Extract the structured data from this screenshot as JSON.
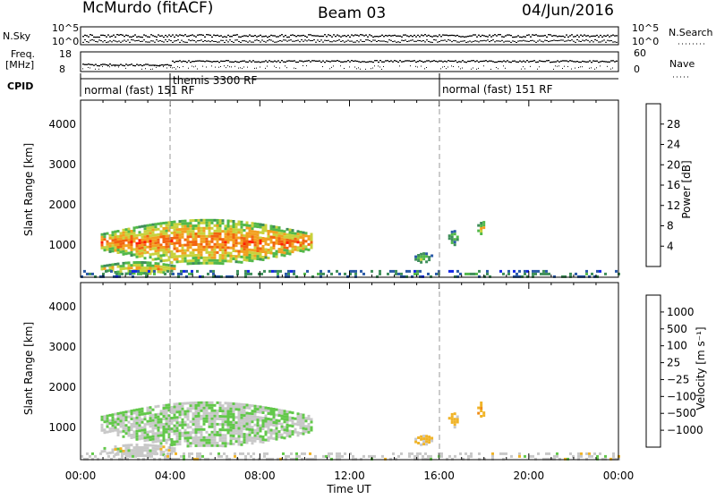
{
  "header": {
    "radar": "McMurdo (fitACF)",
    "beam": "Beam 03",
    "date": "04/Jun/2016"
  },
  "sky_panel": {
    "left_label": "N.Sky",
    "right_label": "N.Search",
    "left_ticks": [
      "10^5",
      "10^0"
    ],
    "right_ticks": [
      "10^5",
      "10^0"
    ]
  },
  "freq_panel": {
    "left_label_line1": "Freq.",
    "left_label_line2": "[MHz]",
    "right_label": "Nave",
    "left_ticks": [
      "18",
      "8"
    ],
    "right_ticks": [
      "60",
      "0"
    ]
  },
  "cpid": {
    "label": "CPID",
    "segments": [
      {
        "text": "normal (fast) 151 RF",
        "start_hour": 0
      },
      {
        "text": "themis 3300 RF",
        "start_hour": 4
      },
      {
        "text": "normal (fast) 151 RF",
        "start_hour": 16
      }
    ]
  },
  "power_panel": {
    "ylabel": "Slant Range [km]",
    "yticks": [
      "1000",
      "2000",
      "3000",
      "4000"
    ],
    "colorbar_label": "Power [dB]",
    "colorbar_ticks": [
      "4",
      "8",
      "12",
      "16",
      "20",
      "24",
      "28"
    ]
  },
  "velocity_panel": {
    "ylabel": "Slant Range [km]",
    "yticks": [
      "1000",
      "2000",
      "3000",
      "4000"
    ],
    "colorbar_label": "Velocity [m s⁻¹]",
    "colorbar_ticks": [
      "1000",
      "500",
      "100",
      "25",
      "−25",
      "−100",
      "−500",
      "−1000"
    ]
  },
  "xaxis": {
    "label": "Time UT",
    "ticks": [
      "00:00",
      "04:00",
      "08:00",
      "12:00",
      "16:00",
      "20:00",
      "00:00"
    ]
  },
  "chart_data": {
    "type": "heatmap",
    "title": "McMurdo (fitACF)   Beam 03   04/Jun/2016",
    "xlabel": "Time UT",
    "ylabel": "Slant Range [km]",
    "xlim_hours": [
      0,
      24
    ],
    "ylim_km": [
      200,
      4600
    ],
    "mode_changes_hours": [
      4,
      16
    ],
    "power_colors": [
      "#1428e6",
      "#2a5aa8",
      "#3f8f5a",
      "#52b84a",
      "#c8d23c",
      "#f2a020",
      "#f26410",
      "#ff1e00"
    ],
    "power_scale_db": [
      0,
      32
    ],
    "velocity_colors": [
      "#2a4eb0",
      "#3c8a5c",
      "#47a06a",
      "#62c84a",
      "#c8c8c8",
      "#f0b428",
      "#f08c14",
      "#f05a0a",
      "#ff1e00"
    ],
    "velocity_scale_ms": [
      -1000,
      1000
    ],
    "echo_regions": [
      {
        "name": "main",
        "t_start": 0.9,
        "t_end": 10.3,
        "range_center_km": 1100,
        "range_halfwidth_km": 550,
        "power_db": 26,
        "velocity_ms": 90
      },
      {
        "name": "ground-scatter-1",
        "t_start": 0.9,
        "t_end": 4.2,
        "range_center_km": 450,
        "range_halfwidth_km": 150,
        "power_db": 22,
        "velocity_ms": 0
      },
      {
        "name": "patch-1",
        "t_start": 14.9,
        "t_end": 15.7,
        "range_center_km": 700,
        "range_halfwidth_km": 120,
        "power_db": 14,
        "velocity_ms": -150
      },
      {
        "name": "patch-2",
        "t_start": 16.4,
        "t_end": 16.8,
        "range_center_km": 1200,
        "range_halfwidth_km": 180,
        "power_db": 14,
        "velocity_ms": -200
      },
      {
        "name": "patch-3",
        "t_start": 17.7,
        "t_end": 18.0,
        "range_center_km": 1450,
        "range_halfwidth_km": 200,
        "power_db": 20,
        "velocity_ms": -250
      },
      {
        "name": "near-range",
        "t_start": 0.0,
        "t_end": 24.0,
        "range_center_km": 300,
        "range_halfwidth_km": 80,
        "power_db": 10,
        "velocity_ms": 0
      }
    ]
  }
}
